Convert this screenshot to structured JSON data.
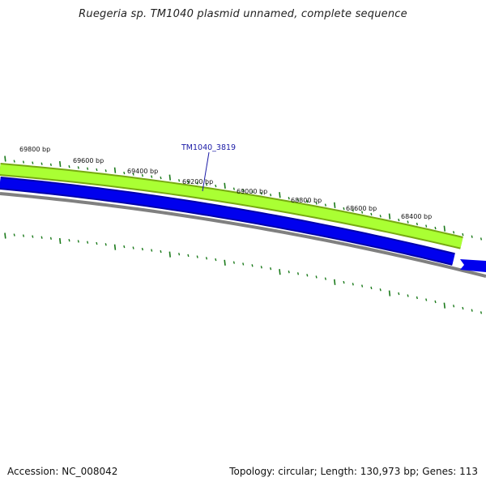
{
  "title": "Ruegeria sp. TM1040 plasmid unnamed, complete sequence",
  "colors": {
    "forward_gene": "#aaff33",
    "forward_gene_edge": "#77aa11",
    "reverse_gene": "#0000ee",
    "reverse_gene_edge": "#0000aa",
    "backbone": "#808080",
    "tick": "#1a7a1a",
    "label_line": "#1a1aa6"
  },
  "gene": {
    "label": "TM1040_3819"
  },
  "scale_labels": [
    "69800 bp",
    "69600 bp",
    "69400 bp",
    "69200 bp",
    "69000 bp",
    "68800 bp",
    "68600 bp",
    "68400 bp"
  ],
  "footer": {
    "accession_label": "Accession:",
    "accession": "NC_008042",
    "topology_label": "Topology:",
    "topology": "circular;",
    "length_label": "Length:",
    "length": "130,973 bp;",
    "genes_label": "Genes:",
    "genes": "113"
  }
}
